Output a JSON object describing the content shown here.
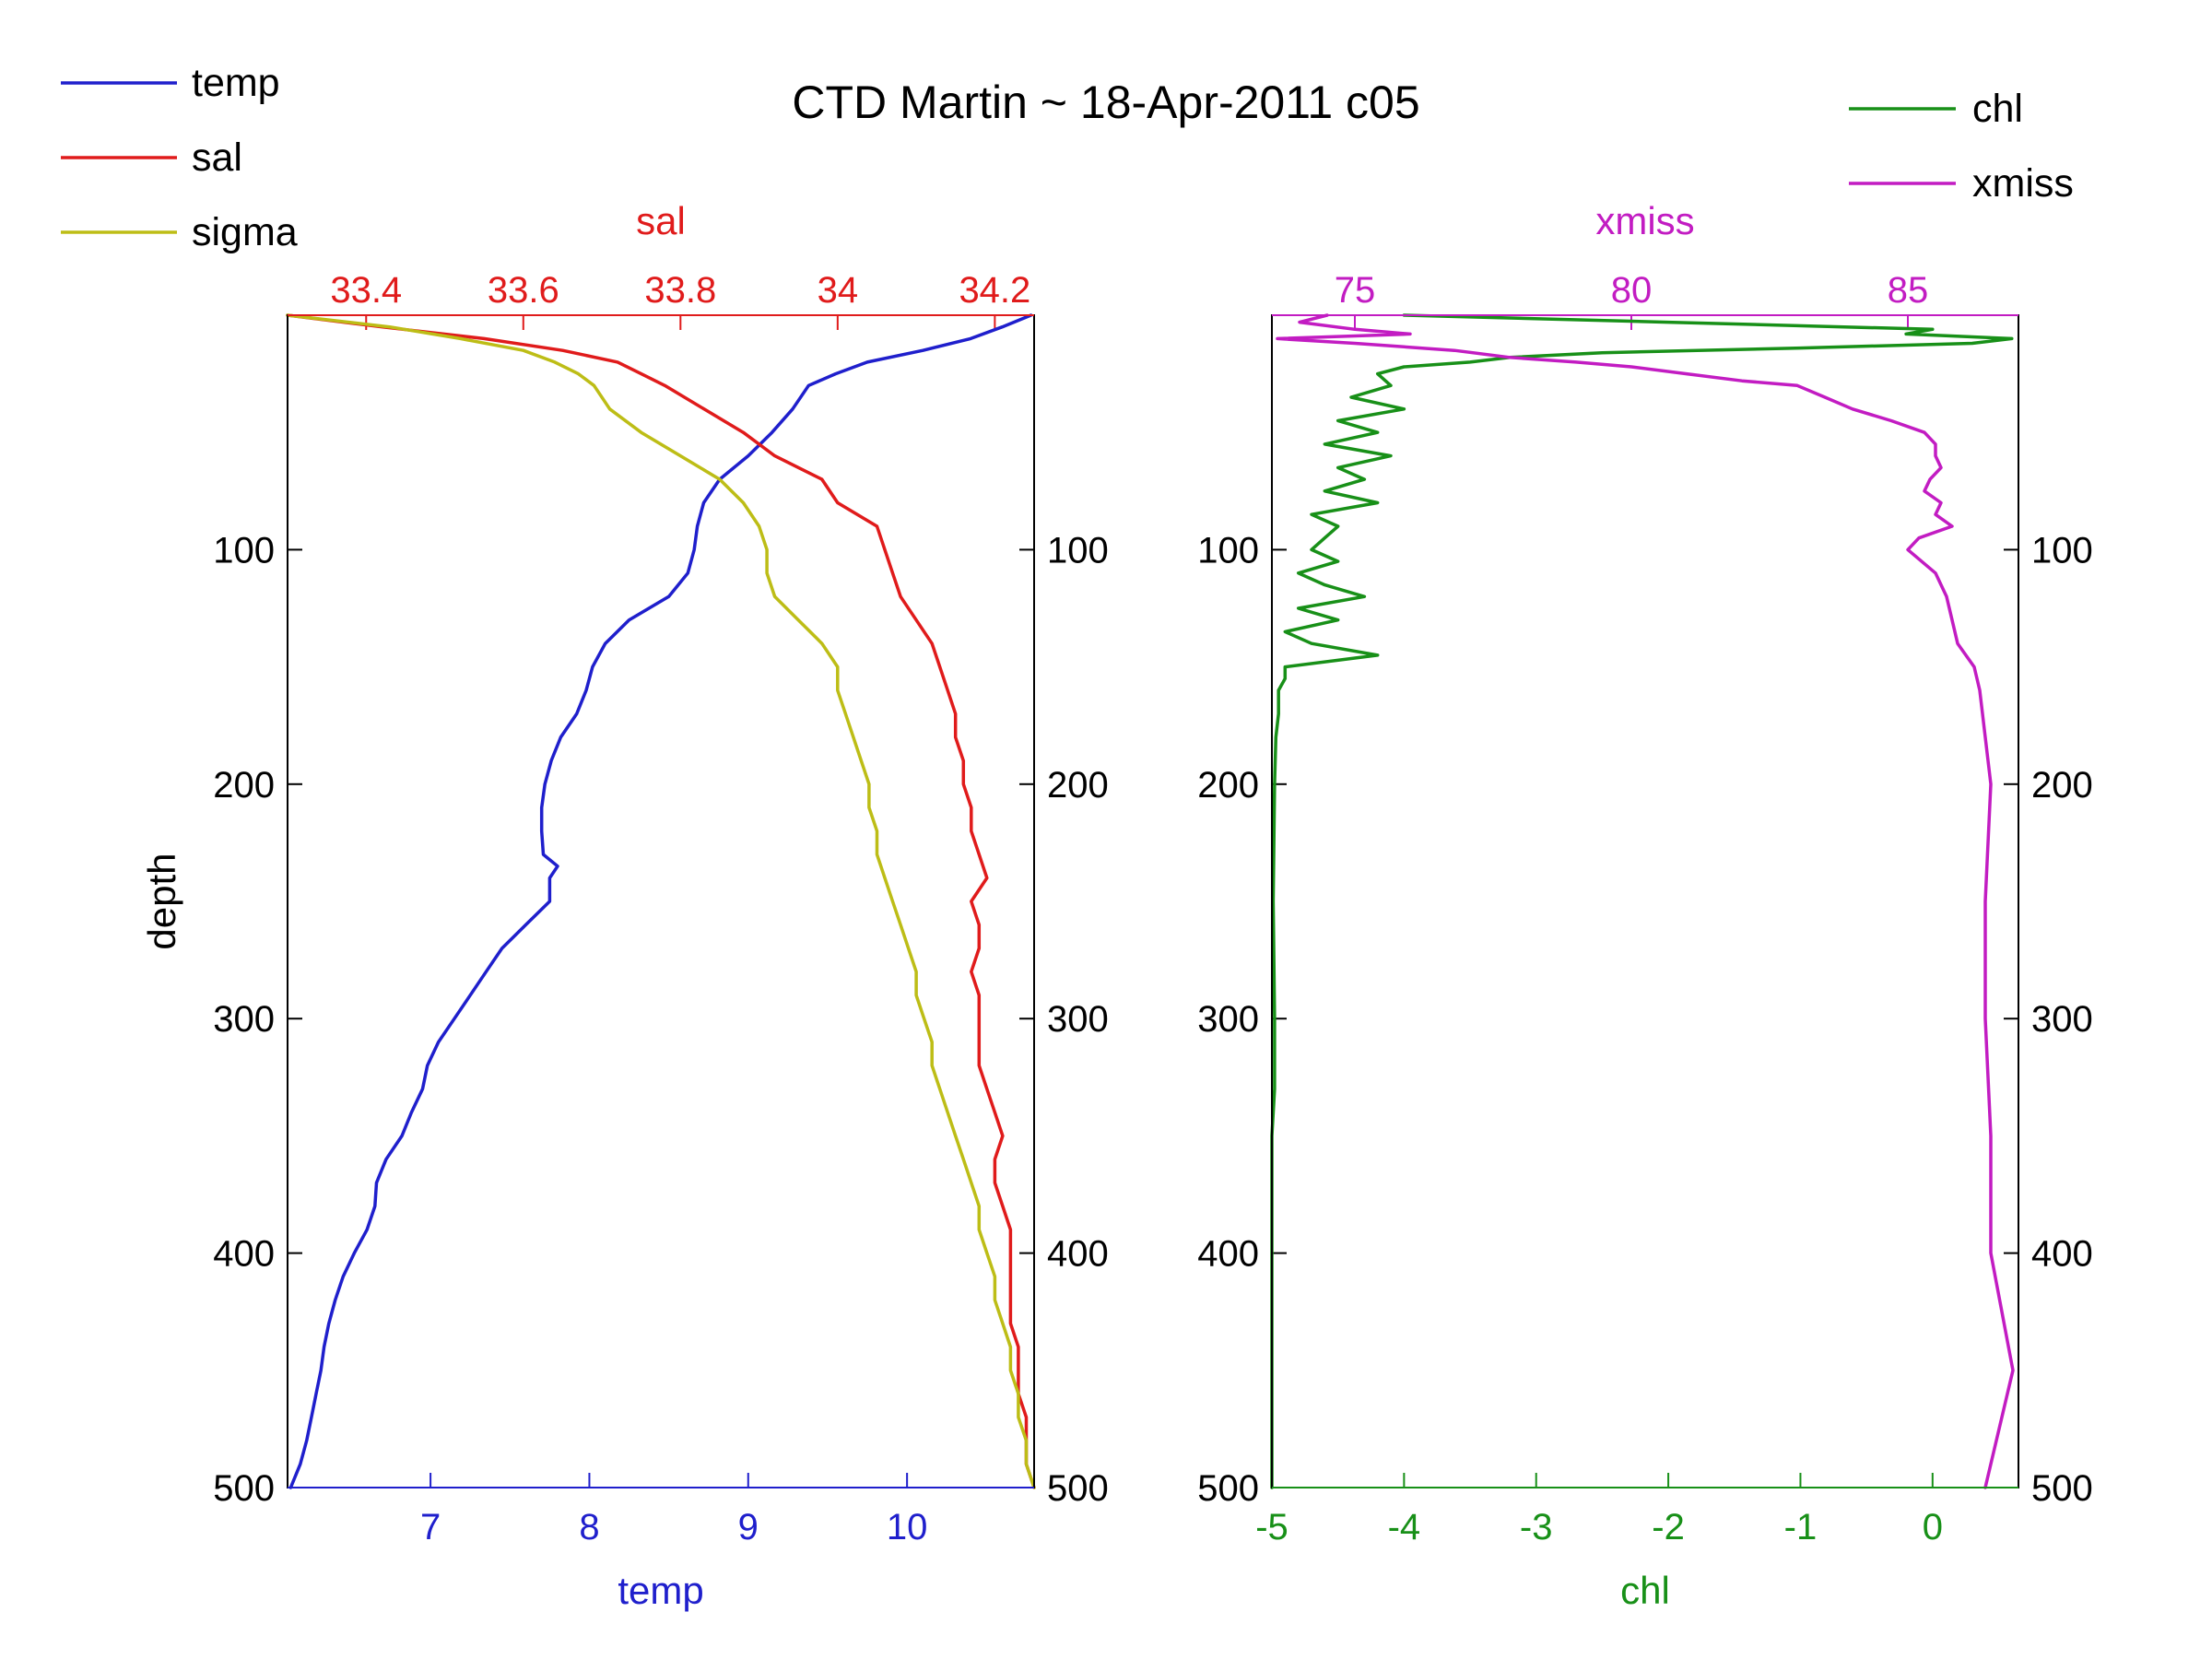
{
  "title": "CTD Martin ~ 18-Apr-2011 c05",
  "legend_left": [
    {
      "name": "temp",
      "color": "#1f1fcc"
    },
    {
      "name": "sal",
      "color": "#e01b1b"
    },
    {
      "name": "sigma",
      "color": "#bdbd16"
    }
  ],
  "legend_right": [
    {
      "name": "chl",
      "color": "#189018"
    },
    {
      "name": "xmiss",
      "color": "#c21cc2"
    }
  ],
  "chart_data": [
    {
      "type": "line",
      "orientation": "profile (x = property, y = depth, depth increasing downward)",
      "ylabel": "depth",
      "ylim": [
        0,
        500
      ],
      "yticks": [
        "100",
        "200",
        "300",
        "400",
        "500"
      ],
      "grid": false,
      "legend_placement": "top-left",
      "bottom_axis": {
        "label": "temp",
        "color": "#1f1fcc",
        "lim": [
          6.1,
          10.8
        ],
        "ticks": [
          "7",
          "8",
          "9",
          "10"
        ]
      },
      "top_axis": {
        "label": "sal",
        "color": "#e01b1b",
        "lim": [
          33.3,
          34.25
        ],
        "ticks": [
          "33.4",
          "33.6",
          "33.8",
          "34",
          "34.2"
        ]
      },
      "series": [
        {
          "name": "temp",
          "axis": "bottom",
          "color": "#1f1fcc",
          "depth": [
            0,
            5,
            10,
            15,
            20,
            25,
            30,
            40,
            50,
            60,
            70,
            80,
            90,
            100,
            110,
            120,
            130,
            140,
            150,
            160,
            170,
            180,
            190,
            200,
            210,
            220,
            230,
            235,
            240,
            250,
            260,
            270,
            280,
            290,
            300,
            310,
            320,
            330,
            340,
            350,
            360,
            370,
            380,
            390,
            400,
            410,
            420,
            430,
            440,
            450,
            460,
            470,
            480,
            490,
            500
          ],
          "values": [
            10.78,
            10.6,
            10.4,
            10.1,
            9.75,
            9.55,
            9.38,
            9.28,
            9.15,
            9.0,
            8.82,
            8.72,
            8.68,
            8.66,
            8.62,
            8.5,
            8.25,
            8.1,
            8.02,
            7.98,
            7.92,
            7.82,
            7.76,
            7.72,
            7.7,
            7.7,
            7.71,
            7.8,
            7.75,
            7.75,
            7.6,
            7.45,
            7.35,
            7.25,
            7.15,
            7.05,
            6.98,
            6.95,
            6.88,
            6.82,
            6.72,
            6.66,
            6.65,
            6.6,
            6.52,
            6.45,
            6.4,
            6.36,
            6.33,
            6.31,
            6.28,
            6.25,
            6.22,
            6.18,
            6.12
          ]
        },
        {
          "name": "sal",
          "axis": "top",
          "color": "#e01b1b",
          "depth": [
            0,
            5,
            10,
            15,
            20,
            25,
            30,
            40,
            50,
            60,
            70,
            80,
            90,
            100,
            110,
            120,
            130,
            140,
            150,
            160,
            170,
            180,
            190,
            200,
            210,
            220,
            230,
            240,
            250,
            260,
            270,
            280,
            290,
            300,
            310,
            320,
            330,
            340,
            350,
            360,
            370,
            380,
            390,
            400,
            410,
            420,
            430,
            440,
            450,
            460,
            470,
            480,
            490,
            500
          ],
          "values": [
            33.3,
            33.42,
            33.55,
            33.65,
            33.72,
            33.75,
            33.78,
            33.83,
            33.88,
            33.92,
            33.98,
            34.0,
            34.05,
            34.06,
            34.07,
            34.08,
            34.1,
            34.12,
            34.13,
            34.14,
            34.15,
            34.15,
            34.16,
            34.16,
            34.17,
            34.17,
            34.18,
            34.19,
            34.17,
            34.18,
            34.18,
            34.17,
            34.18,
            34.18,
            34.18,
            34.18,
            34.19,
            34.2,
            34.21,
            34.2,
            34.2,
            34.21,
            34.22,
            34.22,
            34.22,
            34.22,
            34.22,
            34.23,
            34.23,
            34.23,
            34.24,
            34.24,
            34.24,
            34.25
          ]
        },
        {
          "name": "sigma",
          "axis": "top",
          "color": "#bdbd16",
          "depth": [
            0,
            5,
            10,
            15,
            20,
            25,
            30,
            40,
            50,
            60,
            70,
            80,
            90,
            100,
            110,
            120,
            130,
            140,
            150,
            160,
            170,
            180,
            190,
            200,
            210,
            220,
            230,
            240,
            250,
            260,
            270,
            280,
            290,
            300,
            310,
            320,
            330,
            340,
            350,
            360,
            370,
            380,
            390,
            400,
            410,
            420,
            430,
            440,
            450,
            460,
            470,
            480,
            490,
            500
          ],
          "values": [
            33.3,
            33.43,
            33.52,
            33.6,
            33.64,
            33.67,
            33.69,
            33.71,
            33.75,
            33.8,
            33.85,
            33.88,
            33.9,
            33.91,
            33.91,
            33.92,
            33.95,
            33.98,
            34.0,
            34.0,
            34.01,
            34.02,
            34.03,
            34.04,
            34.04,
            34.05,
            34.05,
            34.06,
            34.07,
            34.08,
            34.09,
            34.1,
            34.1,
            34.11,
            34.12,
            34.12,
            34.13,
            34.14,
            34.15,
            34.16,
            34.17,
            34.18,
            34.18,
            34.19,
            34.2,
            34.2,
            34.21,
            34.22,
            34.22,
            34.23,
            34.23,
            34.24,
            34.24,
            34.25
          ]
        }
      ]
    },
    {
      "type": "line",
      "orientation": "profile (x = property, y = depth, depth increasing downward)",
      "ylabel": "",
      "ylim": [
        0,
        500
      ],
      "yticks": [
        "100",
        "200",
        "300",
        "400",
        "500"
      ],
      "grid": false,
      "legend_placement": "top-right",
      "bottom_axis": {
        "label": "chl",
        "color": "#189018",
        "lim": [
          -5,
          0.65
        ],
        "ticks": [
          "-5",
          "-4",
          "-3",
          "-2",
          "-1",
          "0"
        ]
      },
      "top_axis": {
        "label": "xmiss",
        "color": "#c21cc2",
        "lim": [
          73.5,
          87.0
        ],
        "ticks": [
          "75",
          "80",
          "85"
        ]
      },
      "series": [
        {
          "name": "chl",
          "axis": "bottom",
          "color": "#189018",
          "depth": [
            0,
            3,
            6,
            8,
            10,
            12,
            14,
            16,
            18,
            20,
            22,
            25,
            30,
            35,
            40,
            45,
            50,
            55,
            60,
            65,
            70,
            75,
            80,
            85,
            90,
            95,
            100,
            105,
            110,
            115,
            120,
            125,
            130,
            135,
            140,
            145,
            150,
            155,
            160,
            170,
            180,
            200,
            250,
            300,
            330,
            350,
            400,
            450,
            500
          ],
          "values": [
            -4.0,
            -2.0,
            0.0,
            -0.2,
            0.6,
            0.3,
            -1.0,
            -2.5,
            -3.2,
            -3.5,
            -4.0,
            -4.2,
            -4.1,
            -4.4,
            -4.0,
            -4.5,
            -4.2,
            -4.6,
            -4.1,
            -4.5,
            -4.3,
            -4.6,
            -4.2,
            -4.7,
            -4.5,
            -4.6,
            -4.7,
            -4.5,
            -4.8,
            -4.6,
            -4.3,
            -4.8,
            -4.5,
            -4.9,
            -4.7,
            -4.2,
            -4.9,
            -4.9,
            -4.95,
            -4.95,
            -4.97,
            -4.98,
            -4.99,
            -4.98,
            -4.98,
            -5.0,
            -5.0,
            -5.0,
            -5.0
          ]
        },
        {
          "name": "xmiss",
          "axis": "top",
          "color": "#c21cc2",
          "depth": [
            0,
            3,
            6,
            8,
            10,
            12,
            15,
            18,
            20,
            22,
            25,
            28,
            30,
            35,
            40,
            45,
            50,
            55,
            60,
            65,
            70,
            75,
            80,
            85,
            90,
            95,
            100,
            110,
            120,
            130,
            140,
            150,
            160,
            180,
            200,
            250,
            300,
            350,
            400,
            450,
            500
          ],
          "values": [
            74.5,
            74.0,
            75.0,
            76.0,
            73.6,
            75.0,
            76.8,
            77.8,
            79.0,
            80.0,
            81.0,
            82.0,
            83.0,
            83.5,
            84.0,
            84.7,
            85.3,
            85.5,
            85.5,
            85.6,
            85.4,
            85.3,
            85.6,
            85.5,
            85.8,
            85.2,
            85.0,
            85.5,
            85.7,
            85.8,
            85.9,
            86.2,
            86.3,
            86.4,
            86.5,
            86.4,
            86.4,
            86.5,
            86.5,
            86.9,
            86.4
          ]
        }
      ]
    }
  ]
}
